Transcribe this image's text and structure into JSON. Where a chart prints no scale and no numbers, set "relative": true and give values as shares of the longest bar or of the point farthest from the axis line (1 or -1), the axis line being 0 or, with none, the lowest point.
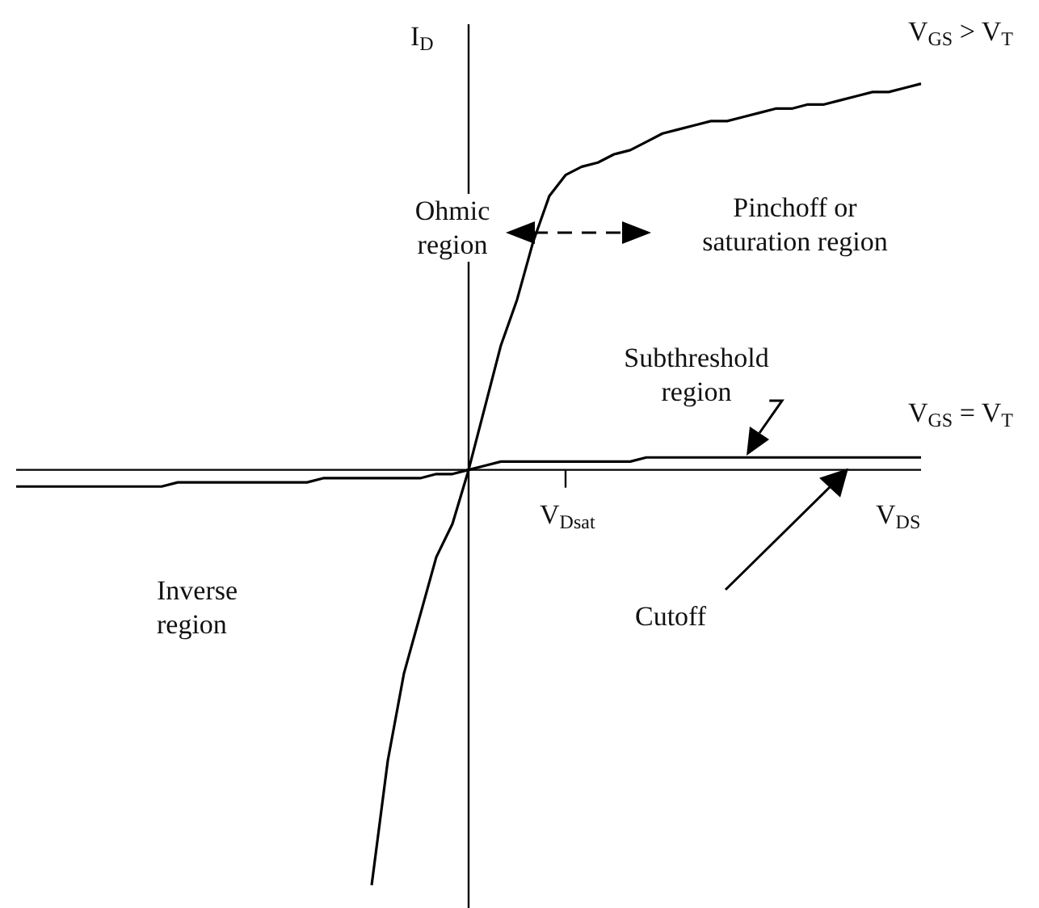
{
  "chart_data": {
    "type": "line",
    "relative": true,
    "marker": "none",
    "line_style": "solid",
    "xlabel": "V$_{DS}$",
    "ylabel": "I$_{D}$",
    "categories": [
      null,
      null,
      null,
      null,
      null,
      null,
      null,
      null,
      null,
      null,
      null,
      null,
      null,
      null,
      null,
      null,
      null,
      null,
      null,
      null,
      null,
      null,
      null,
      null,
      null,
      null,
      null,
      null,
      null,
      null,
      null,
      null,
      null,
      null,
      null,
      null,
      null,
      null,
      null,
      null,
      null,
      null,
      null,
      null,
      null,
      null,
      null,
      null,
      null,
      null,
      null,
      null,
      null,
      null,
      null,
      null,
      null
    ],
    "series": [
      {
        "name": "V$_{GS}$ > V$_{T}$",
        "color": "#000000",
        "values": [
          null,
          null,
          null,
          null,
          null,
          null,
          null,
          null,
          null,
          null,
          null,
          null,
          null,
          null,
          null,
          null,
          null,
          null,
          null,
          null,
          null,
          null,
          -1,
          -0.7,
          -0.49,
          -0.35,
          -0.21,
          -0.13,
          0,
          0.15,
          0.3,
          0.41,
          0.55,
          0.66,
          0.71,
          0.73,
          0.74,
          0.76,
          0.77,
          0.79,
          0.81,
          0.82,
          0.83,
          0.84,
          0.84,
          0.85,
          0.86,
          0.87,
          0.87,
          0.88,
          0.88,
          0.89,
          0.9,
          0.91,
          0.91,
          0.92,
          0.93
        ]
      },
      {
        "name": "V$_{GS}$ = V$_{T}$",
        "color": "#000000",
        "values": [
          -0.04,
          -0.04,
          -0.04,
          -0.04,
          -0.04,
          -0.04,
          -0.04,
          -0.04,
          -0.04,
          -0.04,
          -0.03,
          -0.03,
          -0.03,
          -0.03,
          -0.03,
          -0.03,
          -0.03,
          -0.03,
          -0.03,
          -0.02,
          -0.02,
          -0.02,
          -0.02,
          -0.02,
          -0.02,
          -0.02,
          -0.01,
          -0.01,
          0,
          0.01,
          0.02,
          0.02,
          0.02,
          0.02,
          0.02,
          0.02,
          0.02,
          0.02,
          0.02,
          0.03,
          0.03,
          0.03,
          0.03,
          0.03,
          0.03,
          0.03,
          0.03,
          0.03,
          0.03,
          0.03,
          0.03,
          0.03,
          0.03,
          0.03,
          0.03,
          0.03,
          0.03
        ]
      }
    ],
    "annotations": [
      "Ohmic\nregion",
      "Pinchoff or\nsaturation region",
      "Subthreshold\nregion",
      "Inverse\nregion",
      "Cutoff",
      "V$_{Dsat}$"
    ]
  }
}
